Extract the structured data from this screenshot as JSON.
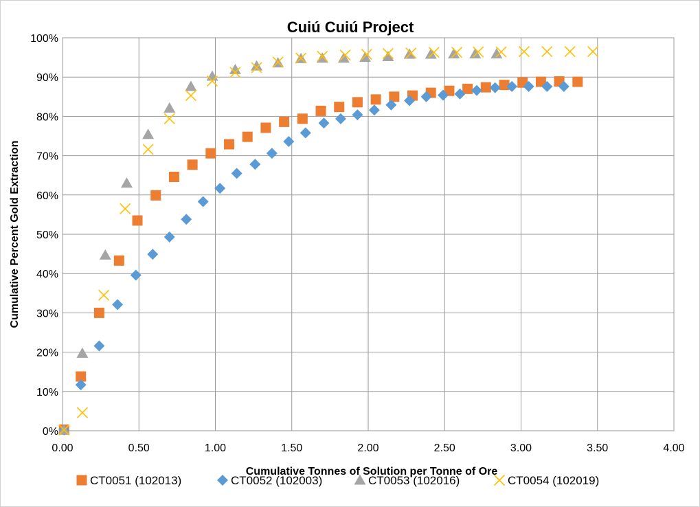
{
  "chart_data": {
    "type": "scatter",
    "title": "Cuiú Cuiú Project",
    "xlabel": "Cumulative Tonnes of Solution per Tonne of Ore",
    "ylabel": "Cumulative Percent Gold Extraction",
    "xlim": [
      0,
      4
    ],
    "ylim": [
      0,
      100
    ],
    "x_ticks": [
      "0.00",
      "0.50",
      "1.00",
      "1.50",
      "2.00",
      "2.50",
      "3.00",
      "3.50",
      "4.00"
    ],
    "y_ticks": [
      "0%",
      "10%",
      "20%",
      "30%",
      "40%",
      "50%",
      "60%",
      "70%",
      "80%",
      "90%",
      "100%"
    ],
    "grid": true,
    "legend_position": "bottom",
    "series": [
      {
        "name": "CT0051 (102013)",
        "marker": "square",
        "color": "#ED7D31",
        "x": [
          0.01,
          0.12,
          0.24,
          0.37,
          0.49,
          0.61,
          0.73,
          0.85,
          0.97,
          1.09,
          1.21,
          1.33,
          1.45,
          1.57,
          1.69,
          1.81,
          1.93,
          2.05,
          2.17,
          2.29,
          2.41,
          2.53,
          2.65,
          2.77,
          2.89,
          3.01,
          3.13,
          3.25,
          3.37
        ],
        "y": [
          0.3,
          13.8,
          30.0,
          43.3,
          53.5,
          59.9,
          64.6,
          67.7,
          70.6,
          72.9,
          74.8,
          77.1,
          78.6,
          79.4,
          81.4,
          82.4,
          83.6,
          84.3,
          85.0,
          85.3,
          86.0,
          86.5,
          87.0,
          87.4,
          88.0,
          88.6,
          88.8,
          88.9,
          88.8
        ]
      },
      {
        "name": "CT0052 (102003)",
        "marker": "diamond",
        "color": "#5B9BD5",
        "x": [
          0.01,
          0.12,
          0.24,
          0.36,
          0.48,
          0.59,
          0.7,
          0.81,
          0.92,
          1.03,
          1.14,
          1.26,
          1.37,
          1.48,
          1.59,
          1.71,
          1.82,
          1.93,
          2.04,
          2.15,
          2.27,
          2.38,
          2.49,
          2.6,
          2.71,
          2.83,
          2.94,
          3.05,
          3.17,
          3.28
        ],
        "y": [
          0.2,
          11.7,
          21.6,
          32.1,
          39.6,
          44.9,
          49.3,
          53.8,
          58.3,
          61.7,
          65.5,
          67.8,
          70.6,
          73.6,
          75.8,
          78.3,
          79.4,
          80.4,
          81.6,
          82.9,
          84.0,
          85.0,
          85.4,
          85.7,
          86.6,
          87.3,
          87.6,
          87.6,
          87.6,
          87.6
        ]
      },
      {
        "name": "CT0053 (102016)",
        "marker": "triangle",
        "color": "#A5A5A5",
        "x": [
          0.01,
          0.13,
          0.28,
          0.42,
          0.56,
          0.7,
          0.84,
          0.98,
          1.13,
          1.27,
          1.41,
          1.56,
          1.7,
          1.84,
          1.98,
          2.13,
          2.27,
          2.41,
          2.56,
          2.7,
          2.84
        ],
        "y": [
          0.2,
          19.7,
          44.7,
          63.0,
          75.4,
          82.1,
          87.6,
          90.2,
          91.9,
          92.8,
          93.6,
          94.7,
          94.8,
          94.8,
          95.0,
          95.2,
          95.8,
          95.8,
          95.9,
          95.9,
          95.9
        ]
      },
      {
        "name": "CT0054 (102019)",
        "marker": "x",
        "color": "#FFC000",
        "x": [
          0.01,
          0.13,
          0.27,
          0.41,
          0.56,
          0.7,
          0.84,
          0.98,
          1.13,
          1.27,
          1.41,
          1.56,
          1.7,
          1.85,
          1.99,
          2.13,
          2.28,
          2.43,
          2.58,
          2.72,
          2.87,
          3.02,
          3.17,
          3.32,
          3.47
        ],
        "y": [
          0.2,
          4.6,
          34.5,
          56.5,
          71.6,
          79.4,
          85.3,
          89.0,
          91.2,
          92.4,
          93.8,
          94.8,
          95.3,
          95.6,
          95.8,
          96.0,
          96.1,
          96.3,
          96.3,
          96.4,
          96.4,
          96.5,
          96.5,
          96.5,
          96.5
        ]
      }
    ]
  }
}
